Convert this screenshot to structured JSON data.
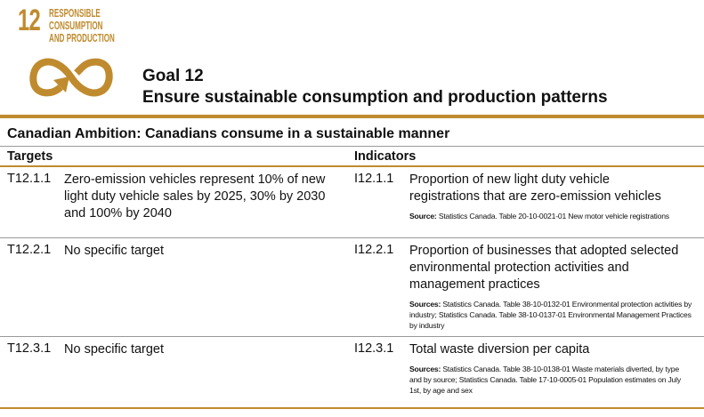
{
  "header": {
    "goal_number": "12",
    "goal_name_lines": [
      "RESPONSIBLE",
      "CONSUMPTION",
      "AND PRODUCTION"
    ],
    "title": "Goal 12",
    "subtitle": "Ensure sustainable consumption and production patterns"
  },
  "ambition": "Canadian Ambition: Canadians consume in a sustainable manner",
  "table": {
    "headers": [
      "Targets",
      "Indicators"
    ],
    "rows": [
      {
        "target_id": "T12.1.1",
        "target": "Zero-emission vehicles represent 10% of new light duty vehicle sales by 2025, 30% by 2030 and 100% by 2040",
        "indicator_id": "I12.1.1",
        "indicator": "Proportion of new light duty vehicle registrations that are zero-emission vehicles",
        "source_label": "Source:",
        "source": "Statistics Canada. Table 20-10-0021-01 New motor vehicle registrations"
      },
      {
        "target_id": "T12.2.1",
        "target": "No specific target",
        "indicator_id": "I12.2.1",
        "indicator": "Proportion of businesses that adopted selected environmental protection activities and management practices",
        "source_label": "Sources:",
        "source": "Statistics Canada. Table 38-10-0132-01 Environmental protection activities by industry; Statistics Canada. Table 38-10-0137-01 Environmental Management Practices by industry"
      },
      {
        "target_id": "T12.3.1",
        "target": "No specific target",
        "indicator_id": "I12.3.1",
        "indicator": "Total waste diversion per capita",
        "source_label": "Sources:",
        "source": "Statistics Canada. Table 38-10-0138-01 Waste materials diverted, by type and by source; Statistics Canada. Table 17-10-0005-01 Population estimates on July 1st, by age and sex"
      }
    ]
  }
}
